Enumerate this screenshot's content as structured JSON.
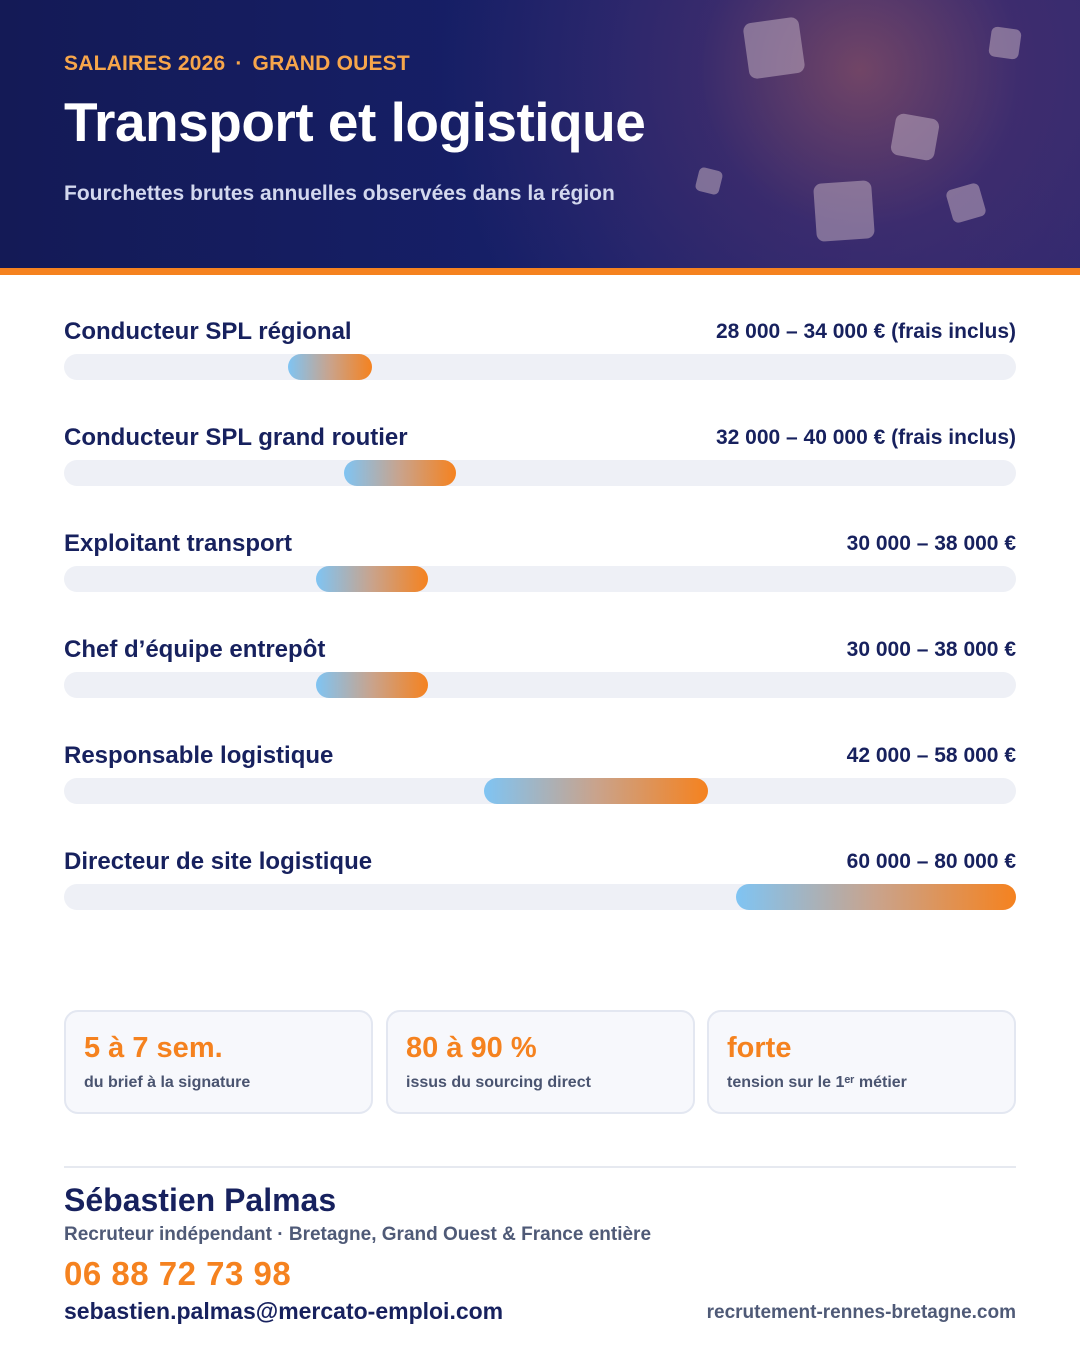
{
  "header": {
    "kicker_left": "SALAIRES 2026",
    "kicker_sep": "·",
    "kicker_right": "GRAND OUEST",
    "title": "Transport et logistique",
    "subtitle": "Fourchettes brutes annuelles observées dans la région"
  },
  "colors": {
    "navy": "#17215e",
    "accent_orange": "#f5821f",
    "bar_start_blue": "#7fc4f3",
    "track": "#eef0f6"
  },
  "chart_data": {
    "type": "bar",
    "orientation": "horizontal-range",
    "unit": "€",
    "xlim": [
      0,
      80000
    ],
    "categories": [
      "Conducteur SPL régional",
      "Conducteur SPL grand routier",
      "Exploitant transport",
      "Chef d’équipe entrepôt",
      "Responsable logistique",
      "Directeur de site logistique"
    ],
    "ranges": [
      {
        "min": 28000,
        "max": 34000,
        "label": "28 000 – 34 000 € (frais inclus)"
      },
      {
        "min": 32000,
        "max": 40000,
        "label": "32 000 – 40 000 € (frais inclus)"
      },
      {
        "min": 30000,
        "max": 38000,
        "label": "30 000 – 38 000 €"
      },
      {
        "min": 30000,
        "max": 38000,
        "label": "30 000 – 38 000 €"
      },
      {
        "min": 42000,
        "max": 58000,
        "label": "42 000 – 58 000 €"
      },
      {
        "min": 60000,
        "max": 80000,
        "label": "60 000 – 80 000 €"
      }
    ]
  },
  "stats": [
    {
      "value": "5 à 7 sem.",
      "label": "du brief à la signature"
    },
    {
      "value": "80 à 90 %",
      "label": "issus du sourcing direct"
    },
    {
      "value": "forte",
      "label": "tension sur le 1ᵉʳ métier"
    }
  ],
  "contact": {
    "name": "Sébastien Palmas",
    "role": "Recruteur indépendant · Bretagne, Grand Ouest & France entière",
    "phone": "06 88 72 73 98",
    "email": "sebastien.palmas@mercato-emploi.com",
    "website": "recrutement-rennes-bretagne.com"
  }
}
